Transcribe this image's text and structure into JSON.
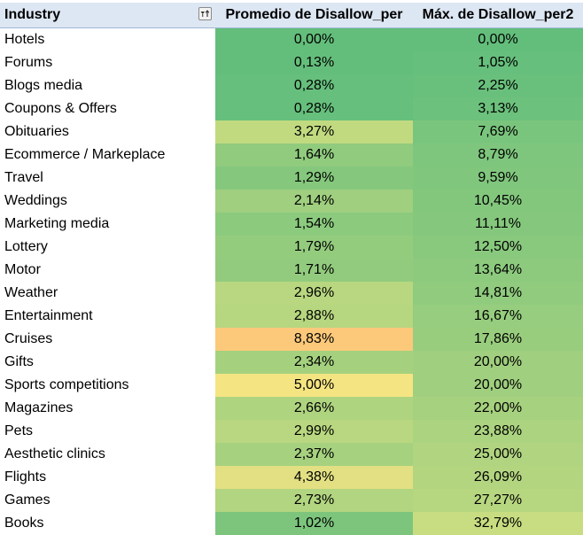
{
  "header": {
    "industry": "Industry",
    "avg": "Promedio de Disallow_per",
    "max": "Máx. de Disallow_per2"
  },
  "filter_icon": "sort-filter-icon",
  "rows": [
    {
      "industry": "Hotels",
      "avg": "0,00%",
      "max": "0,00%",
      "avg_color": "#63be7b",
      "max_color": "#63be7b"
    },
    {
      "industry": "Forums",
      "avg": "0,13%",
      "max": "1,05%",
      "avg_color": "#64be7b",
      "max_color": "#66bf7c"
    },
    {
      "industry": "Blogs media",
      "avg": "0,28%",
      "max": "2,25%",
      "avg_color": "#66bf7c",
      "max_color": "#69c07c"
    },
    {
      "industry": "Coupons & Offers",
      "avg": "0,28%",
      "max": "3,13%",
      "avg_color": "#66bf7c",
      "max_color": "#6cc17c"
    },
    {
      "industry": "Obituaries",
      "avg": "3,27%",
      "max": "7,69%",
      "avg_color": "#c1da80",
      "max_color": "#7ac57d"
    },
    {
      "industry": "Ecommerce / Markeplace",
      "avg": "1,64%",
      "max": "8,79%",
      "avg_color": "#90cb7e",
      "max_color": "#7ec67d"
    },
    {
      "industry": "Travel",
      "avg": "1,29%",
      "max": "9,59%",
      "avg_color": "#85c87d",
      "max_color": "#80c67d"
    },
    {
      "industry": "Weddings",
      "avg": "2,14%",
      "max": "10,45%",
      "avg_color": "#9fcf7f",
      "max_color": "#83c77d"
    },
    {
      "industry": "Marketing media",
      "avg": "1,54%",
      "max": "11,11%",
      "avg_color": "#8cca7e",
      "max_color": "#85c87d"
    },
    {
      "industry": "Lottery",
      "avg": "1,79%",
      "max": "12,50%",
      "avg_color": "#94cc7e",
      "max_color": "#89c97e"
    },
    {
      "industry": "Motor",
      "avg": "1,71%",
      "max": "13,64%",
      "avg_color": "#92cb7e",
      "max_color": "#8dca7e"
    },
    {
      "industry": "Weather",
      "avg": "2,96%",
      "max": "14,81%",
      "avg_color": "#b8d780",
      "max_color": "#90cb7e"
    },
    {
      "industry": "Entertainment",
      "avg": "2,88%",
      "max": "16,67%",
      "avg_color": "#b6d680",
      "max_color": "#96cd7e"
    },
    {
      "industry": "Cruises",
      "avg": "8,83%",
      "max": "17,86%",
      "avg_color": "#fcc97a",
      "max_color": "#99cd7e"
    },
    {
      "industry": "Gifts",
      "avg": "2,34%",
      "max": "20,00%",
      "avg_color": "#a5d17f",
      "max_color": "#a0cf7f"
    },
    {
      "industry": "Sports competitions",
      "avg": "5,00%",
      "max": "20,00%",
      "avg_color": "#f5e582",
      "max_color": "#a0cf7f"
    },
    {
      "industry": "Magazines",
      "avg": "2,66%",
      "max": "22,00%",
      "avg_color": "#afd480",
      "max_color": "#a6d17f"
    },
    {
      "industry": "Pets",
      "avg": "2,99%",
      "max": "23,88%",
      "avg_color": "#b9d780",
      "max_color": "#acd380"
    },
    {
      "industry": "Aesthetic clinics",
      "avg": "2,37%",
      "max": "25,00%",
      "avg_color": "#a6d17f",
      "max_color": "#b0d480"
    },
    {
      "industry": "Flights",
      "avg": "4,38%",
      "max": "26,09%",
      "avg_color": "#e2e082",
      "max_color": "#b3d580"
    },
    {
      "industry": "Games",
      "avg": "2,73%",
      "max": "27,27%",
      "avg_color": "#b1d580",
      "max_color": "#b7d680"
    },
    {
      "industry": "Books",
      "avg": "1,02%",
      "max": "32,79%",
      "avg_color": "#7dc57d",
      "max_color": "#c8dc81"
    }
  ]
}
